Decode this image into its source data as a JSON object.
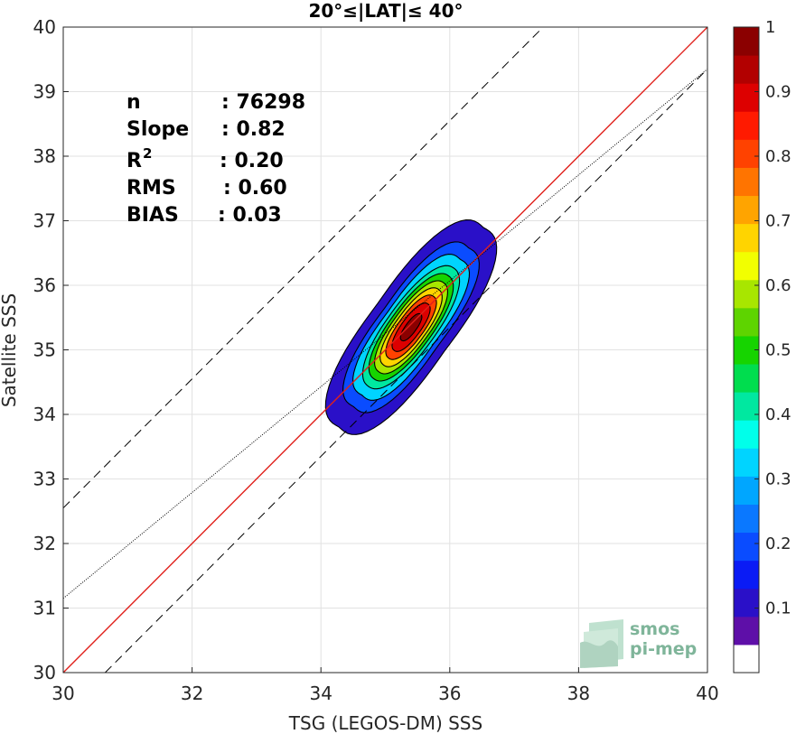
{
  "chart_data": {
    "type": "contour-density-scatter",
    "title": "20°≤|LAT|≤ 40°",
    "xlabel": "TSG (LEGOS-DM) SSS",
    "ylabel": "Satellite SSS",
    "xlim": [
      30,
      40
    ],
    "ylim": [
      30,
      40
    ],
    "xticks": [
      "30",
      "32",
      "34",
      "36",
      "38",
      "40"
    ],
    "yticks": [
      "30",
      "31",
      "32",
      "33",
      "34",
      "35",
      "36",
      "37",
      "38",
      "39",
      "40"
    ],
    "grid": true,
    "lines": [
      {
        "name": "one-to-one",
        "style": "solid",
        "color": "#e0201b",
        "slope": 1.0,
        "intercept": 0.0
      },
      {
        "name": "regression",
        "style": "dotted",
        "color": "#000000",
        "slope": 0.82,
        "intercept": 6.55
      },
      {
        "name": "upper-bound",
        "style": "dashed",
        "color": "#000000",
        "slope": 1.0,
        "intercept": 2.55
      },
      {
        "name": "lower-bound",
        "style": "dashed",
        "color": "#000000",
        "slope": 1.0,
        "intercept": -0.65
      }
    ],
    "density_peak": {
      "x": 35.4,
      "y": 35.35
    },
    "contour_levels": [
      0.05,
      0.15,
      0.25,
      0.35,
      0.45,
      0.55,
      0.65,
      0.75,
      0.85,
      0.95
    ],
    "stats": [
      {
        "label": "n",
        "value": ": 76298"
      },
      {
        "label": "Slope",
        "value": ": 0.82"
      },
      {
        "label": "R",
        "sup": "2",
        "value": ": 0.20"
      },
      {
        "label": "RMS",
        "value": ": 0.60"
      },
      {
        "label": "BIAS",
        "value": ": 0.03"
      }
    ],
    "colorbar": {
      "range": [
        0,
        1
      ],
      "ticks": [
        "0.1",
        "0.2",
        "0.3",
        "0.4",
        "0.5",
        "0.6",
        "0.7",
        "0.8",
        "0.9",
        "1"
      ],
      "colors": [
        "#ffffff",
        "#5e0fa8",
        "#2a10c8",
        "#0a1bf5",
        "#0a4cff",
        "#0a78ff",
        "#00a6ff",
        "#00d4ff",
        "#00ffea",
        "#00e8a0",
        "#00dd4e",
        "#16d400",
        "#5ed400",
        "#a8e600",
        "#f2ff00",
        "#ffd400",
        "#ffa400",
        "#ff7400",
        "#ff4200",
        "#ff1a00",
        "#dd0000",
        "#b20000",
        "#8b0000"
      ]
    }
  },
  "watermark": {
    "line1": "smos",
    "line2": "pi-mep"
  }
}
